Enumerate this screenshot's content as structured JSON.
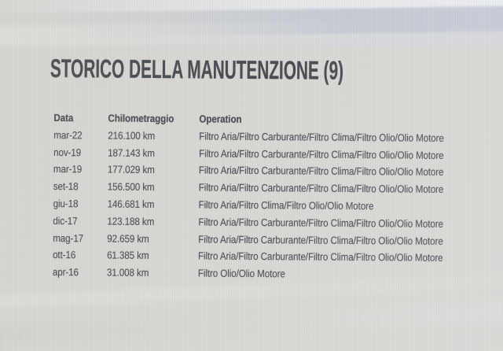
{
  "page": {
    "title": "STORICO DELLA MANUTENZIONE (9)",
    "record_count": "9"
  },
  "maintenance_table": {
    "headers": {
      "date": "Data",
      "mileage": "Chilometraggio",
      "operation": "Operation"
    },
    "rows": [
      {
        "date": "mar-22",
        "mileage": "216.100 km",
        "operation": "Filtro Aria/Filtro Carburante/Filtro Clima/Filtro Olio/Olio Motore"
      },
      {
        "date": "nov-19",
        "mileage": "187.143 km",
        "operation": "Filtro Aria/Filtro Carburante/Filtro Clima/Filtro Olio/Olio Motore"
      },
      {
        "date": "mar-19",
        "mileage": "177.029 km",
        "operation": "Filtro Aria/Filtro Carburante/Filtro Clima/Filtro Olio/Olio Motore"
      },
      {
        "date": "set-18",
        "mileage": "156.500 km",
        "operation": "Filtro Aria/Filtro Carburante/Filtro Clima/Filtro Olio/Olio Motore"
      },
      {
        "date": "giu-18",
        "mileage": "146.681 km",
        "operation": "Filtro Aria/Filtro Clima/Filtro Olio/Olio Motore"
      },
      {
        "date": "dic-17",
        "mileage": "123.188 km",
        "operation": "Filtro Aria/Filtro Carburante/Filtro Clima/Filtro Olio/Olio Motore"
      },
      {
        "date": "mag-17",
        "mileage": "92.659 km",
        "operation": "Filtro Aria/Filtro Carburante/Filtro Clima/Filtro Olio/Olio Motore"
      },
      {
        "date": "ott-16",
        "mileage": "61.385 km",
        "operation": "Filtro Aria/Filtro Carburante/Filtro Clima/Filtro Olio/Olio Motore"
      },
      {
        "date": "apr-16",
        "mileage": "31.008 km",
        "operation": "Filtro Olio/Olio Motore"
      }
    ]
  },
  "colors": {
    "background": "#d7d6d2",
    "top_band": "#c1c7d2",
    "text": "#3e434a",
    "title_text": "#34383d"
  }
}
